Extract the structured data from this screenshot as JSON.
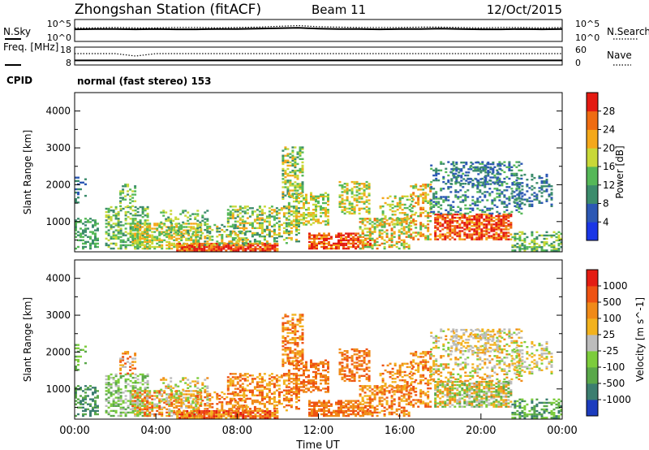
{
  "header": {
    "station": "Zhongshan Station (fitACF)",
    "beam": "Beam 11",
    "date": "12/Oct/2015"
  },
  "chart_data": [
    {
      "type": "line",
      "panel": "noise",
      "left_label": "N.Sky",
      "right_label": "N.Search",
      "left_ticks": [
        "10^5",
        "10^0"
      ],
      "right_ticks": [
        "10^5",
        "10^0"
      ],
      "series": [
        {
          "name": "N.Sky",
          "values": [
            2.8,
            2.9,
            2.9,
            2.8,
            2.9,
            2.8,
            2.8,
            2.9,
            2.9,
            3.0,
            3.1,
            3.2,
            3.0,
            2.9,
            2.9,
            2.8,
            2.9,
            2.9,
            3.0,
            2.9,
            2.8,
            2.8,
            2.9,
            2.8,
            2.9
          ]
        },
        {
          "name": "N.Search",
          "values": [
            3.2,
            3.2,
            3.3,
            3.2,
            3.2,
            3.3,
            3.3,
            3.2,
            3.3,
            3.4,
            3.6,
            3.8,
            3.5,
            3.4,
            3.3,
            3.3,
            3.3,
            3.4,
            3.4,
            3.3,
            3.2,
            3.3,
            3.3,
            3.2,
            3.3
          ]
        }
      ]
    },
    {
      "type": "line",
      "panel": "frequency",
      "left_label": "Freq. [MHz]",
      "right_label": "Nave",
      "left_ticks": [
        "18",
        "8"
      ],
      "right_ticks": [
        "60",
        "0"
      ],
      "series": [
        {
          "name": "Freq",
          "values": [
            10,
            10,
            10,
            10,
            10,
            10,
            10,
            10,
            10,
            10,
            10,
            10,
            10,
            10,
            10,
            10,
            10,
            10,
            10,
            10,
            10,
            10,
            10,
            10,
            10
          ]
        },
        {
          "name": "Nave",
          "values": [
            40,
            40,
            40,
            30,
            40,
            40,
            40,
            40,
            40,
            40,
            40,
            40,
            40,
            40,
            40,
            40,
            40,
            40,
            40,
            40,
            40,
            40,
            40,
            40,
            40
          ]
        }
      ]
    },
    {
      "type": "heatmap",
      "panel": "power",
      "cpid_label": "CPID",
      "cpid": "normal (fast stereo) 153",
      "ylabel": "Slant Range [km]",
      "ylim": [
        180,
        4500
      ],
      "yticks": [
        "1000",
        "2000",
        "3000",
        "4000"
      ],
      "colorbar_label": "Power [dB]",
      "colorbar_ticks": [
        "4",
        "8",
        "12",
        "16",
        "20",
        "24",
        "28"
      ],
      "colorbar_colors": [
        "#1a36e6",
        "#2c58b4",
        "#3c8c6c",
        "#55b858",
        "#c8d838",
        "#f4a81a",
        "#ef6c12",
        "#e41a12"
      ]
    },
    {
      "type": "heatmap",
      "panel": "velocity",
      "ylabel": "Slant Range [km]",
      "ylim": [
        180,
        4500
      ],
      "yticks": [
        "1000",
        "2000",
        "3000",
        "4000"
      ],
      "colorbar_label": "Velocity [m s^-1]",
      "colorbar_ticks": [
        "1000",
        "500",
        "100",
        "25",
        "-25",
        "-100",
        "-500",
        "-1000"
      ],
      "colorbar_colors": [
        "#1c3cbe",
        "#3c7e70",
        "#5aa84a",
        "#7ccc3c",
        "#bcbcbc",
        "#f2b21e",
        "#f08a18",
        "#ee5212",
        "#e41c12"
      ],
      "xlabel": "Time UT",
      "xticks": [
        "00:00",
        "04:00",
        "08:00",
        "12:00",
        "16:00",
        "20:00",
        "00:00"
      ]
    }
  ]
}
